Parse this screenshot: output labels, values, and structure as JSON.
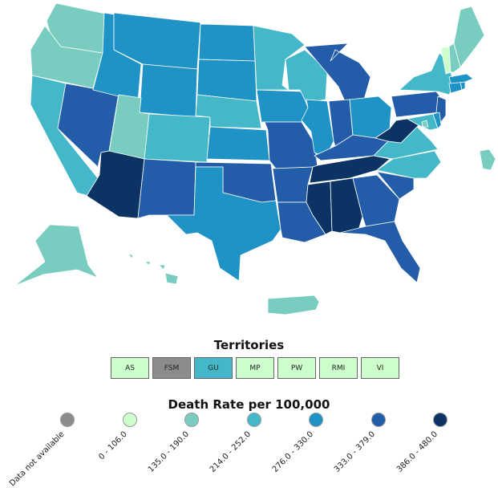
{
  "colors": {
    "na": "#8c8c8c",
    "c1": "#ccffcc",
    "c2": "#79cdc0",
    "c3": "#44b8c9",
    "c4": "#1f92c6",
    "c5": "#235ca8",
    "c6": "#0b3464"
  },
  "map": {
    "states": [
      {
        "id": "WA",
        "c": "c2"
      },
      {
        "id": "OR",
        "c": "c2"
      },
      {
        "id": "CA",
        "c": "c3"
      },
      {
        "id": "NV",
        "c": "c5"
      },
      {
        "id": "ID",
        "c": "c4"
      },
      {
        "id": "MT",
        "c": "c4"
      },
      {
        "id": "WY",
        "c": "c4"
      },
      {
        "id": "UT",
        "c": "c2"
      },
      {
        "id": "AZ",
        "c": "c6"
      },
      {
        "id": "CO",
        "c": "c3"
      },
      {
        "id": "NM",
        "c": "c5"
      },
      {
        "id": "ND",
        "c": "c4"
      },
      {
        "id": "SD",
        "c": "c4"
      },
      {
        "id": "NE",
        "c": "c3"
      },
      {
        "id": "KS",
        "c": "c4"
      },
      {
        "id": "OK",
        "c": "c5"
      },
      {
        "id": "TX",
        "c": "c4"
      },
      {
        "id": "MN",
        "c": "c3"
      },
      {
        "id": "IA",
        "c": "c4"
      },
      {
        "id": "MO",
        "c": "c5"
      },
      {
        "id": "AR",
        "c": "c5"
      },
      {
        "id": "LA",
        "c": "c5"
      },
      {
        "id": "WI",
        "c": "c3"
      },
      {
        "id": "IL",
        "c": "c4"
      },
      {
        "id": "MI",
        "c": "c5"
      },
      {
        "id": "IN",
        "c": "c5"
      },
      {
        "id": "OH",
        "c": "c4"
      },
      {
        "id": "KY",
        "c": "c5"
      },
      {
        "id": "TN",
        "c": "c6"
      },
      {
        "id": "MS",
        "c": "c6"
      },
      {
        "id": "AL",
        "c": "c6"
      },
      {
        "id": "GA",
        "c": "c5"
      },
      {
        "id": "FL",
        "c": "c5"
      },
      {
        "id": "SC",
        "c": "c5"
      },
      {
        "id": "NC",
        "c": "c3"
      },
      {
        "id": "VA",
        "c": "c3"
      },
      {
        "id": "WV",
        "c": "c6"
      },
      {
        "id": "PA",
        "c": "c5"
      },
      {
        "id": "NY",
        "c": "c3"
      },
      {
        "id": "NJ",
        "c": "c5"
      },
      {
        "id": "MD",
        "c": "c3"
      },
      {
        "id": "DE",
        "c": "c4"
      },
      {
        "id": "CT",
        "c": "c4"
      },
      {
        "id": "RI",
        "c": "c4"
      },
      {
        "id": "MA",
        "c": "c4"
      },
      {
        "id": "VT",
        "c": "c1"
      },
      {
        "id": "NH",
        "c": "c2"
      },
      {
        "id": "ME",
        "c": "c2"
      },
      {
        "id": "AK",
        "c": "c2"
      },
      {
        "id": "HI",
        "c": "c2"
      },
      {
        "id": "PR",
        "c": "c2"
      },
      {
        "id": "DC",
        "c": "c2"
      }
    ]
  },
  "territories": {
    "title": "Territories",
    "items": [
      {
        "label": "AS",
        "c": "c1"
      },
      {
        "label": "FSM",
        "c": "na"
      },
      {
        "label": "GU",
        "c": "c3"
      },
      {
        "label": "MP",
        "c": "c1"
      },
      {
        "label": "PW",
        "c": "c1"
      },
      {
        "label": "RMI",
        "c": "c1"
      },
      {
        "label": "VI",
        "c": "c1"
      }
    ]
  },
  "legend": {
    "title": "Death Rate per 100,000",
    "items": [
      {
        "label": "Data not available",
        "c": "na"
      },
      {
        "label": "0 - 106.0",
        "c": "c1"
      },
      {
        "label": "135.0 - 190.0",
        "c": "c2"
      },
      {
        "label": "214.0 - 252.0",
        "c": "c3"
      },
      {
        "label": "276.0 - 330.0",
        "c": "c4"
      },
      {
        "label": "333.0 - 379.0",
        "c": "c5"
      },
      {
        "label": "386.0 - 480.0",
        "c": "c6"
      }
    ]
  }
}
